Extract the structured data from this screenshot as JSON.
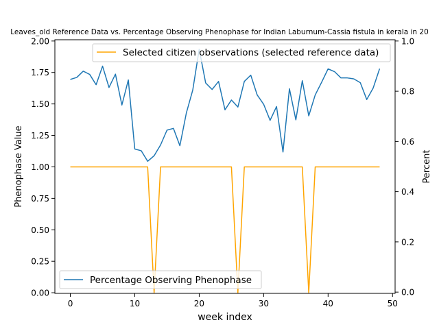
{
  "chart_data": {
    "type": "line",
    "title": "Leaves_old Reference Data vs. Percentage Observing Phenophase for Indian Laburnum-Cassia fistula in kerala in 20",
    "xlabel": "week index",
    "ylabel_left": "Phenophase Value",
    "ylabel_right": "Percent",
    "xlim": [
      -2.4,
      50.4
    ],
    "ylim_left": [
      -0.005,
      2.01
    ],
    "ylim_right": [
      -0.005,
      1.005
    ],
    "x_ticks": [
      0,
      10,
      20,
      30,
      40,
      50
    ],
    "y_ticks_left": [
      0.0,
      0.25,
      0.5,
      0.75,
      1.0,
      1.25,
      1.5,
      1.75,
      2.0
    ],
    "y_ticks_right": [
      0.0,
      0.2,
      0.4,
      0.6,
      0.8,
      1.0
    ],
    "x_tick_labels": [
      "0",
      "10",
      "20",
      "30",
      "40",
      "50"
    ],
    "y_tick_labels_left": [
      "0.00",
      "0.25",
      "0.50",
      "0.75",
      "1.00",
      "1.25",
      "1.50",
      "1.75",
      "2.00"
    ],
    "y_tick_labels_right": [
      "0.0",
      "0.2",
      "0.4",
      "0.6",
      "0.8",
      "1.0"
    ],
    "grid": false,
    "series": [
      {
        "name": "Selected citizen observations (selected reference data)",
        "axis": "left",
        "color": "#ffa500",
        "legend_placement": "upper-right",
        "x": [
          0,
          1,
          2,
          3,
          4,
          5,
          6,
          7,
          8,
          9,
          10,
          11,
          12,
          13,
          14,
          15,
          16,
          17,
          18,
          19,
          20,
          21,
          22,
          23,
          24,
          25,
          26,
          27,
          28,
          29,
          30,
          31,
          32,
          33,
          34,
          35,
          36,
          37,
          38,
          39,
          40,
          41,
          42,
          43,
          44,
          45,
          46,
          47,
          48
        ],
        "values": [
          1,
          1,
          1,
          1,
          1,
          1,
          1,
          1,
          1,
          1,
          1,
          1,
          1,
          0,
          1,
          1,
          1,
          1,
          1,
          1,
          1,
          1,
          1,
          1,
          1,
          1,
          0,
          1,
          1,
          1,
          1,
          1,
          1,
          1,
          1,
          1,
          1,
          0,
          1,
          1,
          1,
          1,
          1,
          1,
          1,
          1,
          1,
          1,
          1
        ]
      },
      {
        "name": "Percentage Observing Phenophase",
        "axis": "right",
        "color": "#1f77b4",
        "legend_placement": "lower-left",
        "x": [
          0,
          1,
          2,
          3,
          4,
          5,
          6,
          7,
          8,
          9,
          10,
          11,
          12,
          13,
          14,
          15,
          16,
          17,
          18,
          19,
          20,
          21,
          22,
          23,
          24,
          25,
          26,
          27,
          28,
          29,
          30,
          31,
          32,
          33,
          34,
          35,
          36,
          37,
          38,
          39,
          40,
          41,
          42,
          43,
          44,
          45,
          46,
          47,
          48
        ],
        "values": [
          0.847,
          0.855,
          0.88,
          0.867,
          0.826,
          0.9,
          0.815,
          0.868,
          0.745,
          0.845,
          0.57,
          0.563,
          0.521,
          0.543,
          0.586,
          0.645,
          0.652,
          0.583,
          0.713,
          0.805,
          0.967,
          0.833,
          0.807,
          0.839,
          0.726,
          0.765,
          0.737,
          0.839,
          0.864,
          0.785,
          0.748,
          0.684,
          0.739,
          0.558,
          0.81,
          0.686,
          0.842,
          0.702,
          0.785,
          0.836,
          0.889,
          0.878,
          0.853,
          0.853,
          0.849,
          0.834,
          0.767,
          0.813,
          0.89
        ]
      }
    ]
  }
}
